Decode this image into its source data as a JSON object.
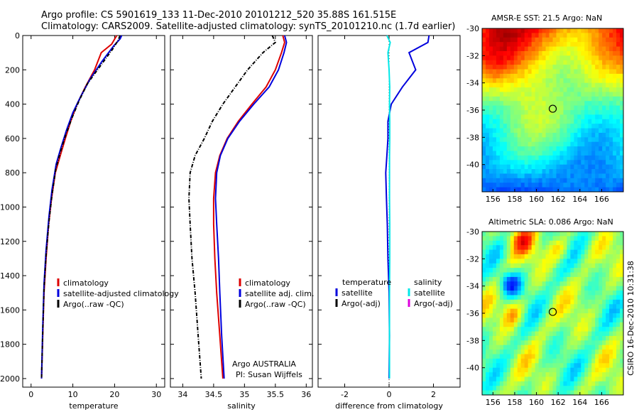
{
  "titles": {
    "line1": "Argo profile: CS 5901619_133 11-Dec-2010 20101212_520 35.88S 161.515E",
    "line2": "Climatology: CARS2009. Satellite-adjusted climatology: synTS_20101210.nc (1.7d earlier)",
    "sst": "AMSR-E SST: 21.5 Argo: NaN",
    "sla": "Altimetric SLA: 0.086 Argo: NaN",
    "credit": "CSIRO 16-Dec-2010 10:31:38",
    "argo_org": "Argo AUSTRALIA",
    "pi": "PI: Susan Wijffels"
  },
  "colors": {
    "clim": "#dd0000",
    "sat": "#0000dd",
    "argo": "#000000",
    "sal_sat": "#00e8e8",
    "sal_argo": "#dd00dd"
  },
  "chart_data": [
    {
      "type": "line",
      "id": "temperature",
      "xlabel": "temperature",
      "ylabel": "",
      "xlim": [
        -2,
        32
      ],
      "ylim": [
        2050,
        0
      ],
      "xticks": [
        0,
        10,
        20,
        30
      ],
      "yticks": [
        0,
        200,
        400,
        600,
        800,
        1000,
        1200,
        1400,
        1600,
        1800,
        2000
      ],
      "series": [
        {
          "name": "climatology",
          "color": "#dd0000",
          "dash": false,
          "x": [
            20.5,
            19.3,
            16.8,
            15.2,
            13.0,
            11.0,
            9.5,
            8.2,
            7.0,
            5.8,
            4.9,
            4.2,
            3.6,
            3.1,
            2.8,
            2.5
          ],
          "y": [
            0,
            50,
            100,
            200,
            300,
            400,
            500,
            600,
            700,
            800,
            950,
            1100,
            1300,
            1500,
            1750,
            2000
          ]
        },
        {
          "name": "satellite-adjusted climatology",
          "color": "#0000dd",
          "dash": false,
          "x": [
            21.7,
            21.3,
            19.8,
            17.0,
            14.2,
            12.0,
            10.0,
            8.5,
            7.2,
            6.0,
            5.0,
            4.3,
            3.6,
            3.1,
            2.8,
            2.5
          ],
          "y": [
            0,
            20,
            60,
            150,
            250,
            350,
            450,
            550,
            650,
            750,
            900,
            1050,
            1250,
            1450,
            1700,
            2000
          ]
        },
        {
          "name": "Argo(..raw -QC)",
          "color": "#000000",
          "dash": true,
          "x": [
            21.3,
            20.8,
            19.5,
            16.5,
            13.5,
            11.5,
            9.8,
            8.3,
            7.0,
            5.9,
            5.0,
            4.3,
            3.6,
            3.1,
            2.8,
            2.5
          ],
          "y": [
            0,
            30,
            80,
            180,
            280,
            380,
            480,
            580,
            680,
            780,
            930,
            1080,
            1280,
            1480,
            1730,
            2000
          ]
        }
      ],
      "legend": [
        "climatology",
        "satellite-adjusted climatology",
        "Argo(..raw -QC)"
      ]
    },
    {
      "type": "line",
      "id": "salinity",
      "xlabel": "salinity",
      "ylabel": "",
      "xlim": [
        33.8,
        36.1
      ],
      "ylim": [
        2050,
        0
      ],
      "xticks": [
        34,
        34.5,
        35,
        35.5,
        36
      ],
      "series": [
        {
          "name": "climatology",
          "color": "#dd0000",
          "dash": false,
          "x": [
            35.62,
            35.65,
            35.6,
            35.5,
            35.35,
            35.12,
            34.9,
            34.72,
            34.6,
            34.53,
            34.5,
            34.5,
            34.52,
            34.55,
            34.6,
            34.65
          ],
          "y": [
            0,
            40,
            100,
            200,
            300,
            400,
            500,
            600,
            700,
            800,
            950,
            1100,
            1300,
            1500,
            1750,
            2000
          ]
        },
        {
          "name": "satellite adj. clim.",
          "color": "#0000dd",
          "dash": false,
          "x": [
            35.65,
            35.68,
            35.64,
            35.55,
            35.4,
            35.15,
            34.92,
            34.73,
            34.61,
            34.55,
            34.53,
            34.55,
            34.58,
            34.6,
            34.63,
            34.67
          ],
          "y": [
            0,
            40,
            100,
            200,
            300,
            400,
            500,
            600,
            700,
            800,
            950,
            1100,
            1300,
            1500,
            1750,
            2000
          ]
        },
        {
          "name": "Argo(..raw -QC)",
          "color": "#000000",
          "dash": true,
          "x": [
            35.45,
            35.5,
            35.3,
            35.05,
            34.85,
            34.65,
            34.48,
            34.35,
            34.2,
            34.12,
            34.1,
            34.12,
            34.15,
            34.2,
            34.25,
            34.3
          ],
          "y": [
            0,
            40,
            100,
            200,
            300,
            400,
            500,
            600,
            700,
            800,
            950,
            1100,
            1300,
            1500,
            1750,
            2000
          ]
        }
      ],
      "legend": [
        "climatology",
        "satellite adj. clim.",
        "Argo(..raw -QC)"
      ]
    },
    {
      "type": "line",
      "id": "difference",
      "xlabel": "difference from climatology",
      "ylabel": "",
      "xlim": [
        -3.2,
        3.2
      ],
      "ylim": [
        2050,
        0
      ],
      "xticks": [
        -2,
        0,
        2
      ],
      "series": [
        {
          "name": "temperature satellite",
          "color": "#0000dd",
          "dash": false,
          "x": [
            1.8,
            1.75,
            0.9,
            1.2,
            0.6,
            0.1,
            -0.05,
            -0.05,
            -0.1,
            -0.15,
            -0.12,
            -0.08,
            -0.05,
            0.0,
            0.02,
            0.0
          ],
          "y": [
            0,
            40,
            100,
            200,
            300,
            400,
            500,
            600,
            700,
            800,
            950,
            1100,
            1300,
            1500,
            1750,
            2000
          ]
        },
        {
          "name": "salinity satellite",
          "color": "#00e8e8",
          "dash": false,
          "x": [
            -0.1,
            0.05,
            -0.05,
            0.0,
            0.03,
            0.02,
            0.03,
            0.03,
            0.02,
            0.02,
            0.02,
            0.03,
            0.03,
            0.02,
            0.02,
            0.02
          ],
          "y": [
            0,
            40,
            100,
            200,
            300,
            400,
            500,
            600,
            700,
            800,
            950,
            1100,
            1300,
            1500,
            1750,
            2000
          ]
        }
      ],
      "legend_temp": {
        "header": "temperature",
        "items": [
          "satellite",
          "Argo(-adj)"
        ]
      },
      "legend_sal": {
        "header": "salinity",
        "items": [
          "satellite",
          "Argo(-adj)"
        ]
      }
    },
    {
      "type": "heatmap",
      "id": "sst-map",
      "title": "AMSR-E SST: 21.5 Argo: NaN",
      "xlim": [
        155,
        168
      ],
      "ylim": [
        -42,
        -30
      ],
      "xticks": [
        156,
        158,
        160,
        162,
        164,
        166
      ],
      "yticks": [
        -30,
        -32,
        -34,
        -36,
        -38,
        -40
      ],
      "marker": {
        "lon": 161.5,
        "lat": -35.9
      },
      "colormap": "jet"
    },
    {
      "type": "heatmap",
      "id": "sla-map",
      "title": "Altimetric SLA: 0.086 Argo: NaN",
      "xlim": [
        155,
        168
      ],
      "ylim": [
        -42,
        -30
      ],
      "xticks": [
        156,
        158,
        160,
        162,
        164,
        166
      ],
      "yticks": [
        -30,
        -32,
        -34,
        -36,
        -38,
        -40
      ],
      "marker": {
        "lon": 161.5,
        "lat": -35.9
      },
      "colormap": "jet"
    }
  ]
}
